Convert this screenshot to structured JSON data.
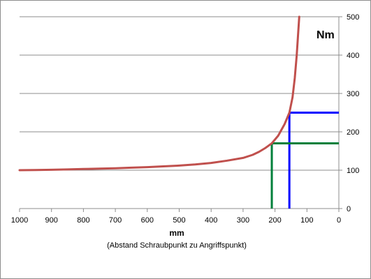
{
  "chart_data": {
    "type": "line",
    "xlim": [
      1000,
      0
    ],
    "ylim": [
      0,
      500
    ],
    "x_reversed": true,
    "y_axis_side": "right",
    "grid": {
      "horizontal": true,
      "vertical": false
    },
    "x_ticks": [
      1000,
      900,
      800,
      700,
      600,
      500,
      400,
      300,
      200,
      100,
      0
    ],
    "y_ticks": [
      0,
      100,
      200,
      300,
      400,
      500
    ],
    "xlabel": "mm",
    "xlabel_sub": "(Abstand Schraubpunkt zu Angriffspunkt)",
    "unit_label": "Nm",
    "curve": {
      "color": "#c0504d",
      "points": [
        [
          1000,
          100
        ],
        [
          950,
          100.5
        ],
        [
          900,
          101
        ],
        [
          850,
          102
        ],
        [
          800,
          103
        ],
        [
          750,
          104
        ],
        [
          700,
          105
        ],
        [
          650,
          106.5
        ],
        [
          600,
          108
        ],
        [
          550,
          110
        ],
        [
          500,
          112
        ],
        [
          450,
          115
        ],
        [
          400,
          119
        ],
        [
          350,
          125
        ],
        [
          300,
          132
        ],
        [
          270,
          140
        ],
        [
          250,
          148
        ],
        [
          230,
          158
        ],
        [
          210,
          170
        ],
        [
          190,
          190
        ],
        [
          170,
          220
        ],
        [
          155,
          250
        ],
        [
          145,
          290
        ],
        [
          138,
          340
        ],
        [
          132,
          400
        ],
        [
          128,
          450
        ],
        [
          124,
          500
        ]
      ]
    },
    "markers": [
      {
        "name": "blue",
        "color": "#0000ff",
        "x": 155,
        "y": 250
      },
      {
        "name": "green",
        "color": "#00803b",
        "x": 210,
        "y": 170
      }
    ]
  }
}
